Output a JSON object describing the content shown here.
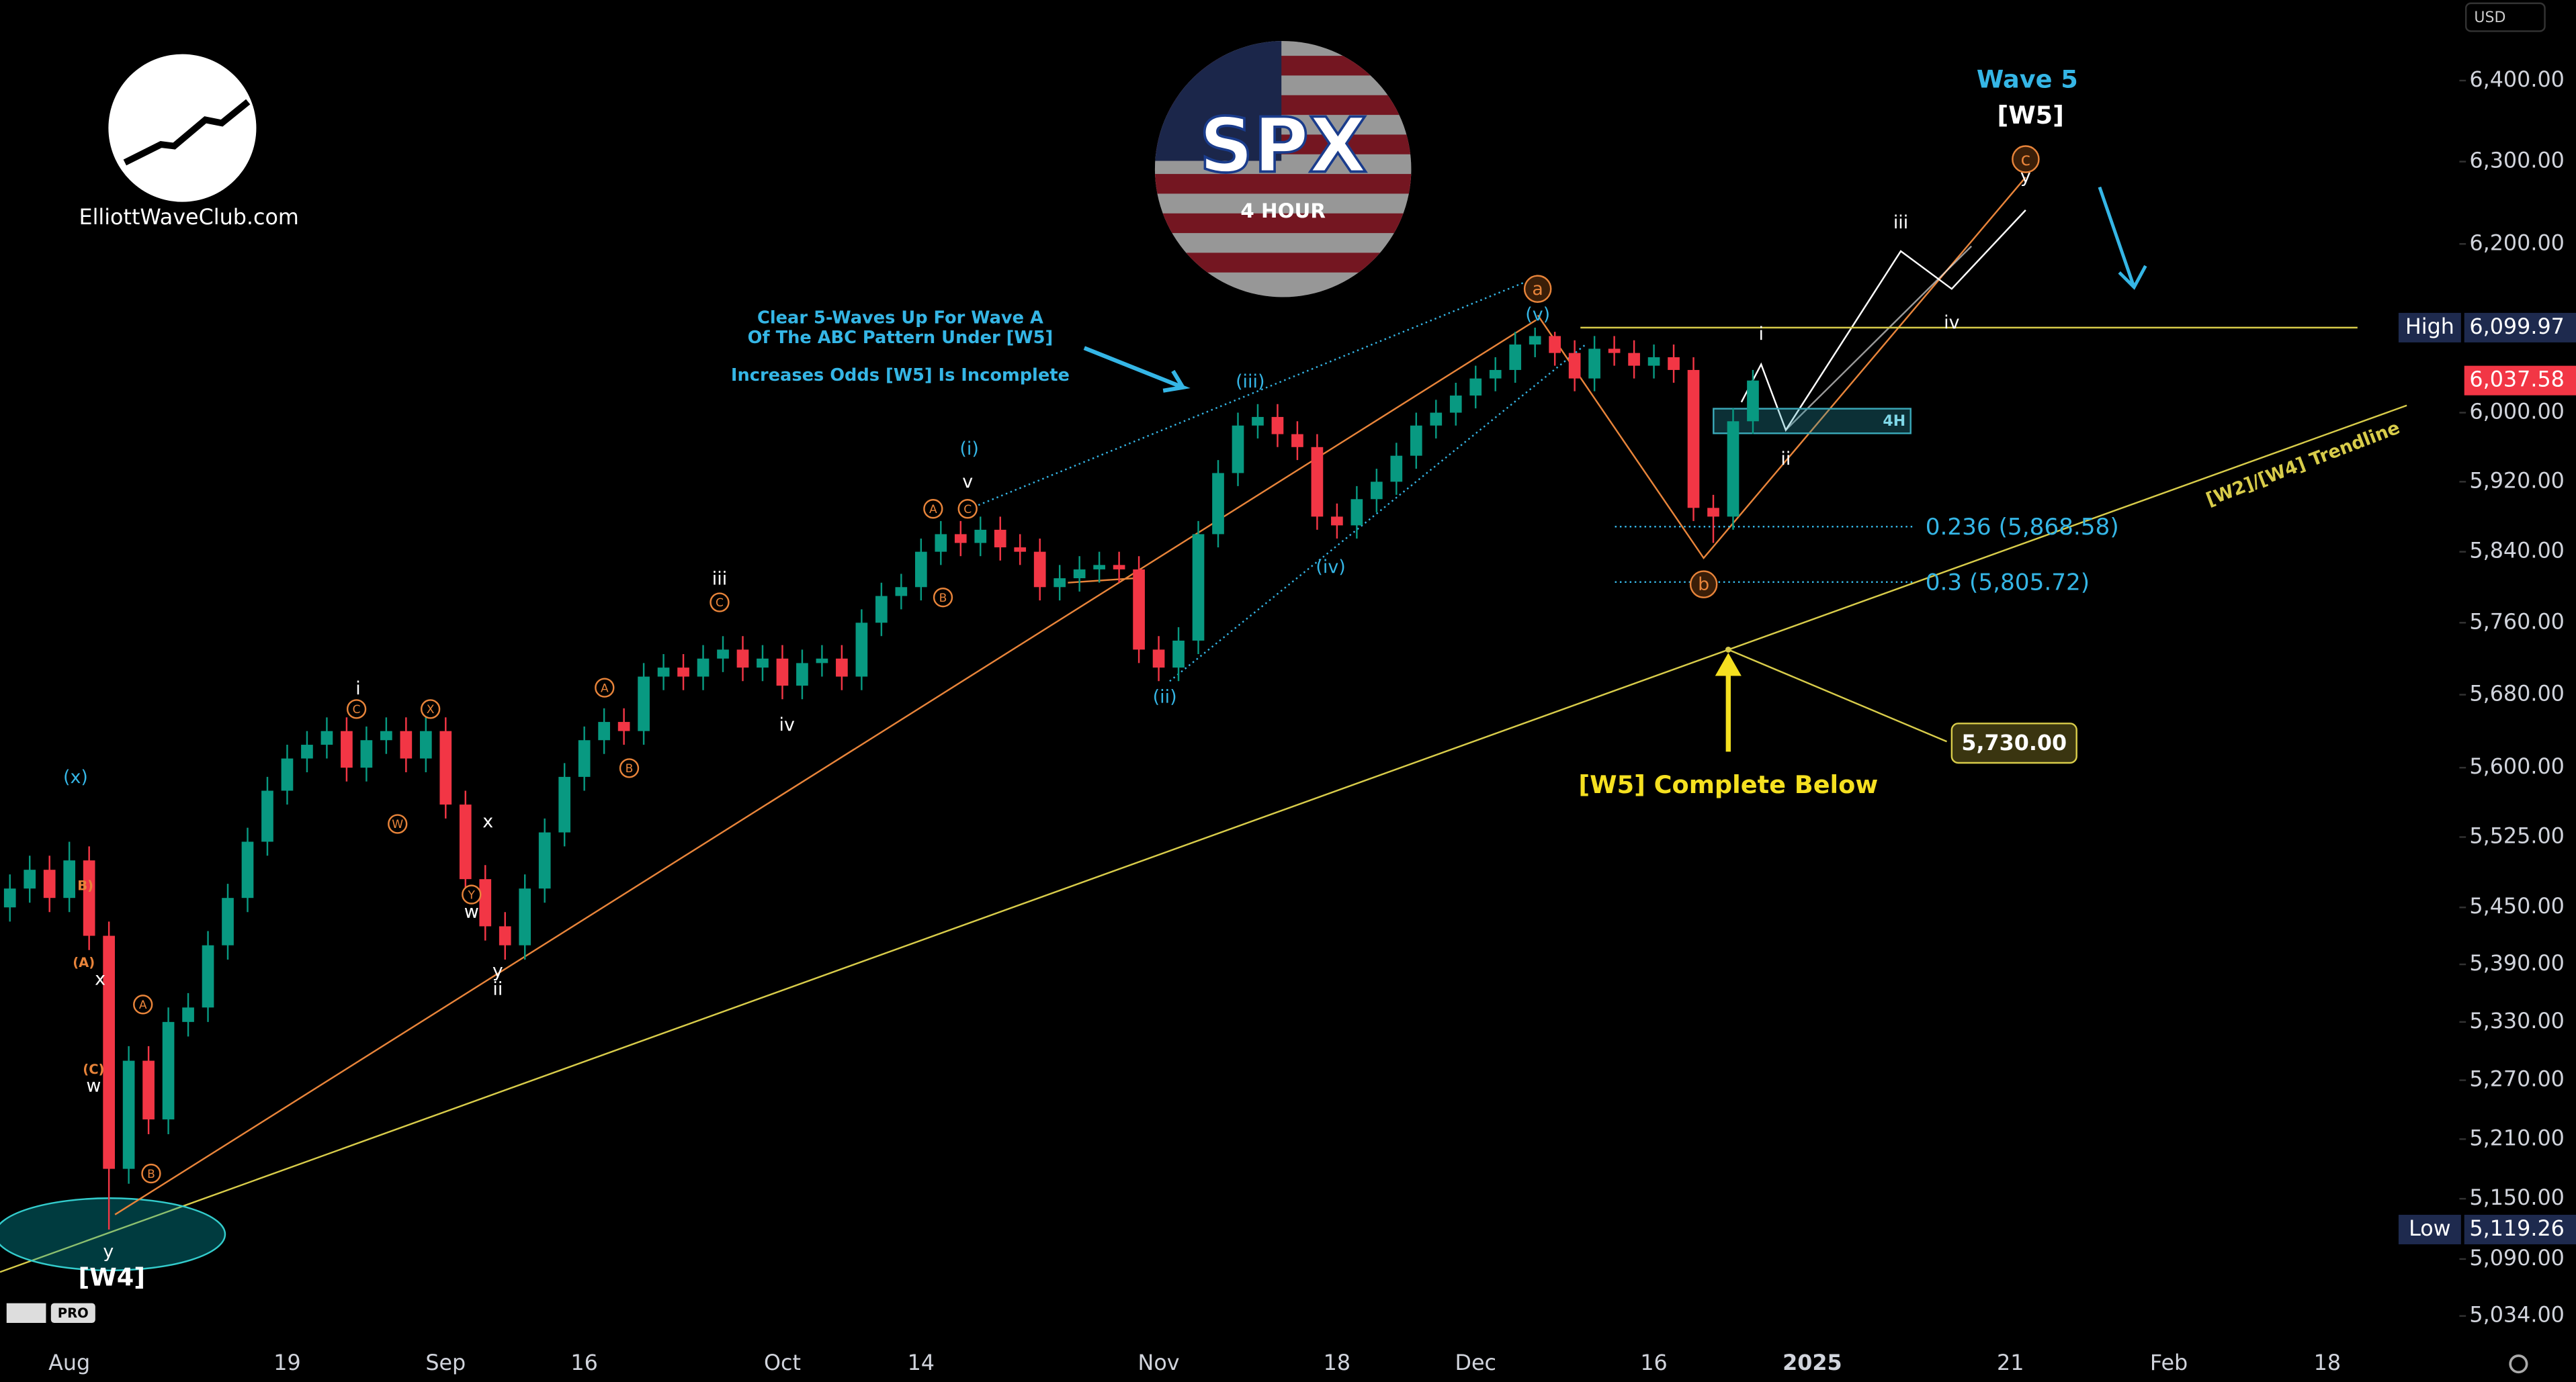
{
  "chart_data": {
    "type": "candlestick",
    "title": "SPX",
    "subtitle": "4 HOUR",
    "brand": "ElliottWaveClub.com",
    "badge": "PRO",
    "currency": "USD",
    "log_scale": true,
    "grid": false,
    "up_color": "#089981",
    "down_color": "#f23645",
    "ylim": [
      5008,
      6501
    ],
    "yticks": [
      {
        "value": 5034,
        "label": "5,034.00"
      },
      {
        "value": 5090,
        "label": "5,090.00"
      },
      {
        "value": 5150,
        "label": "5,150.00"
      },
      {
        "value": 5210,
        "label": "5,210.00"
      },
      {
        "value": 5270,
        "label": "5,270.00"
      },
      {
        "value": 5330,
        "label": "5,330.00"
      },
      {
        "value": 5390,
        "label": "5,390.00"
      },
      {
        "value": 5450,
        "label": "5,450.00"
      },
      {
        "value": 5525,
        "label": "5,525.00"
      },
      {
        "value": 5600,
        "label": "5,600.00"
      },
      {
        "value": 5680,
        "label": "5,680.00"
      },
      {
        "value": 5760,
        "label": "5,760.00"
      },
      {
        "value": 5840,
        "label": "5,840.00"
      },
      {
        "value": 5920,
        "label": "5,920.00"
      },
      {
        "value": 6000,
        "label": "6,000.00"
      },
      {
        "value": 6200,
        "label": "6,200.00"
      },
      {
        "value": 6300,
        "label": "6,300.00"
      },
      {
        "value": 6400,
        "label": "6,400.00"
      }
    ],
    "categories": [
      null,
      null,
      null,
      "Aug",
      null,
      null,
      null,
      null,
      null,
      null,
      null,
      null,
      null,
      null,
      "19",
      null,
      null,
      null,
      null,
      null,
      null,
      null,
      "Sep",
      null,
      null,
      null,
      null,
      null,
      null,
      "16",
      null,
      null,
      null,
      null,
      null,
      null,
      null,
      null,
      null,
      "Oct",
      null,
      null,
      null,
      null,
      null,
      null,
      "14",
      null,
      null,
      null,
      null,
      null,
      null,
      null,
      null,
      null,
      null,
      null,
      "Nov",
      null,
      null,
      null,
      null,
      null,
      null,
      null,
      null,
      "18",
      null,
      null,
      null,
      null,
      null,
      null,
      "Dec",
      null,
      null,
      null,
      null,
      null,
      null,
      null,
      null,
      "16",
      null,
      null,
      null,
      null,
      null,
      null,
      null,
      "2025",
      null,
      null,
      null,
      null,
      null,
      null,
      null,
      null,
      null,
      "21",
      null,
      null,
      null,
      null,
      null,
      null,
      null,
      "Feb",
      null,
      null,
      null,
      null,
      null,
      null,
      null,
      "18",
      null,
      null,
      null,
      null,
      null,
      null
    ],
    "open": [
      5450,
      5470,
      5490,
      5460,
      5500,
      5420,
      5180,
      5290,
      5230,
      5330,
      5345,
      5410,
      5460,
      5520,
      5575,
      5610,
      5625,
      5640,
      5600,
      5630,
      5640,
      5610,
      5640,
      5560,
      5480,
      5430,
      5410,
      5470,
      5530,
      5590,
      5630,
      5650,
      5640,
      5700,
      5710,
      5700,
      5720,
      5730,
      5710,
      5720,
      5690,
      5715,
      5720,
      5700,
      5760,
      5790,
      5800,
      5840,
      5860,
      5850,
      5865,
      5845,
      5840,
      5800,
      5810,
      5820,
      5825,
      5820,
      5730,
      5710,
      5740,
      5860,
      5930,
      5985,
      5995,
      5975,
      5960,
      5880,
      5870,
      5900,
      5920,
      5950,
      5985,
      6000,
      6020,
      6040,
      6050,
      6080,
      6090,
      6070,
      6040,
      6075,
      6070,
      6055,
      6065,
      6050,
      5890,
      5880,
      5990,
      null,
      null,
      null,
      null,
      null,
      null,
      null,
      null,
      null,
      null,
      null,
      null,
      null,
      null,
      null,
      null,
      null,
      null,
      null,
      null,
      null,
      null,
      null,
      null,
      null,
      null,
      null,
      null,
      null,
      null,
      null,
      null,
      null,
      null,
      null
    ],
    "high": [
      5485,
      5505,
      5505,
      5520,
      5515,
      5435,
      5305,
      5305,
      5345,
      5360,
      5425,
      5475,
      5535,
      5590,
      5625,
      5640,
      5655,
      5655,
      5645,
      5655,
      5655,
      5660,
      5655,
      5575,
      5495,
      5445,
      5485,
      5545,
      5605,
      5645,
      5665,
      5665,
      5715,
      5725,
      5725,
      5735,
      5745,
      5745,
      5735,
      5735,
      5730,
      5735,
      5735,
      5775,
      5805,
      5815,
      5855,
      5875,
      5875,
      5880,
      5880,
      5860,
      5855,
      5825,
      5835,
      5840,
      5840,
      5835,
      5745,
      5755,
      5875,
      5945,
      6000,
      6010,
      6010,
      5990,
      5975,
      5895,
      5915,
      5935,
      5965,
      6000,
      6015,
      6035,
      6055,
      6065,
      6095,
      6099.97,
      6095,
      6085,
      6090,
      6090,
      6085,
      6080,
      6080,
      6065,
      5905,
      6005,
      6050,
      null,
      null,
      null,
      null,
      null,
      null,
      null,
      null,
      null,
      null,
      null,
      null,
      null,
      null,
      null,
      null,
      null,
      null,
      null,
      null,
      null,
      null,
      null,
      null,
      null,
      null,
      null,
      null,
      null,
      null,
      null,
      null,
      null,
      null,
      null
    ],
    "low": [
      5435,
      5455,
      5445,
      5445,
      5405,
      5119.26,
      5165,
      5215,
      5215,
      5315,
      5330,
      5395,
      5445,
      5505,
      5560,
      5595,
      5610,
      5585,
      5585,
      5615,
      5595,
      5595,
      5545,
      5465,
      5415,
      5395,
      5395,
      5455,
      5515,
      5575,
      5615,
      5625,
      5625,
      5685,
      5685,
      5685,
      5705,
      5695,
      5695,
      5675,
      5675,
      5700,
      5685,
      5685,
      5745,
      5775,
      5785,
      5825,
      5835,
      5835,
      5830,
      5825,
      5785,
      5785,
      5795,
      5805,
      5805,
      5715,
      5695,
      5695,
      5725,
      5845,
      5915,
      5970,
      5960,
      5945,
      5865,
      5855,
      5855,
      5885,
      5905,
      5935,
      5970,
      5985,
      6005,
      6025,
      6035,
      6065,
      6055,
      6025,
      6025,
      6055,
      6040,
      6040,
      6035,
      5875,
      5850,
      5865,
      5975,
      null,
      null,
      null,
      null,
      null,
      null,
      null,
      null,
      null,
      null,
      null,
      null,
      null,
      null,
      null,
      null,
      null,
      null,
      null,
      null,
      null,
      null,
      null,
      null,
      null,
      null,
      null,
      null,
      null,
      null,
      null,
      null,
      null,
      null,
      null
    ],
    "close": [
      5470,
      5490,
      5460,
      5500,
      5420,
      5180,
      5290,
      5230,
      5330,
      5345,
      5410,
      5460,
      5520,
      5575,
      5610,
      5625,
      5640,
      5600,
      5630,
      5640,
      5610,
      5640,
      5560,
      5480,
      5430,
      5410,
      5470,
      5530,
      5590,
      5630,
      5650,
      5640,
      5700,
      5710,
      5700,
      5720,
      5730,
      5710,
      5720,
      5690,
      5715,
      5720,
      5700,
      5760,
      5790,
      5800,
      5840,
      5860,
      5850,
      5865,
      5845,
      5840,
      5800,
      5810,
      5820,
      5825,
      5820,
      5730,
      5710,
      5740,
      5860,
      5930,
      5985,
      5995,
      5975,
      5960,
      5880,
      5870,
      5900,
      5920,
      5950,
      5985,
      6000,
      6020,
      6040,
      6050,
      6080,
      6090,
      6070,
      6040,
      6075,
      6070,
      6055,
      6065,
      6050,
      5890,
      5880,
      5990,
      6037.58,
      null,
      null,
      null,
      null,
      null,
      null,
      null,
      null,
      null,
      null,
      null,
      null,
      null,
      null,
      null,
      null,
      null,
      null,
      null,
      null,
      null,
      null,
      null,
      null,
      null,
      null,
      null,
      null,
      null,
      null,
      null,
      null,
      null,
      null,
      null
    ],
    "price_labels": [
      {
        "name": "High",
        "value": 6099.97,
        "label": "6,099.97",
        "color": "#1e2a4e"
      },
      {
        "value": 6037.58,
        "label": "6,037.58",
        "color": "#f23645"
      },
      {
        "name": "Low",
        "value": 5119.26,
        "label": "5,119.26",
        "color": "#1e2a4e"
      }
    ],
    "fib_levels": [
      {
        "value": 5868.58,
        "label": "0.236 (5,868.58)"
      },
      {
        "value": 5805.72,
        "label": "0.3 (5,805.72)"
      }
    ],
    "target": {
      "value": 5730,
      "label": "5,730.00"
    },
    "annotations": [
      "Wave 5",
      "[W5]",
      "Clear 5-Waves Up For Wave A",
      "Of The ABC Pattern Under [W5]",
      "Increases Odds [W5] Is Incomplete",
      "[W5] Complete Below",
      "[W2]/[W4] Trendline",
      "4H",
      "[W4]"
    ],
    "wave_labels": [
      "(x)",
      "(i)",
      "(iii)",
      "(iv)",
      "(ii)",
      "(v)",
      "i",
      "ii",
      "iii",
      "iv",
      "v",
      "x",
      "w",
      "y",
      "x",
      "w",
      "y",
      "iii",
      "iv",
      "ii",
      "i",
      "y",
      "a",
      "b",
      "c",
      "A",
      "C",
      "B",
      "C",
      "A",
      "B",
      "C",
      "X",
      "W",
      "Y",
      "A",
      "B",
      "(A)",
      "(C)",
      "B)"
    ]
  }
}
